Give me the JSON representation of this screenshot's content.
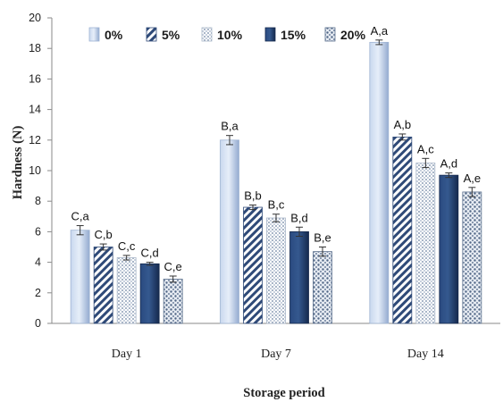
{
  "chart_data": {
    "type": "bar",
    "categories": [
      "Day 1",
      "Day 7",
      "Day 14"
    ],
    "series": [
      {
        "name": "0%",
        "values": [
          6.1,
          12.0,
          18.4
        ],
        "errors": [
          0.3,
          0.3,
          0.15
        ],
        "labels": [
          "C,a",
          "B,a",
          "A,a"
        ]
      },
      {
        "name": "5%",
        "values": [
          5.0,
          7.6,
          12.2
        ],
        "errors": [
          0.2,
          0.15,
          0.2
        ],
        "labels": [
          "C,b",
          "B,b",
          "A,b"
        ]
      },
      {
        "name": "10%",
        "values": [
          4.3,
          6.9,
          10.5
        ],
        "errors": [
          0.15,
          0.25,
          0.3
        ],
        "labels": [
          "C,c",
          "B,c",
          "A,c"
        ]
      },
      {
        "name": "15%",
        "values": [
          3.9,
          6.0,
          9.7
        ],
        "errors": [
          0.1,
          0.3,
          0.15
        ],
        "labels": [
          "C,d",
          "B,d",
          "A,d"
        ]
      },
      {
        "name": "20%",
        "values": [
          2.9,
          4.7,
          8.6
        ],
        "errors": [
          0.2,
          0.3,
          0.3
        ],
        "labels": [
          "C,e",
          "B,e",
          "A,e"
        ]
      }
    ],
    "xlabel": "Storage period",
    "ylabel": "Hardness (N)",
    "ylim": [
      0,
      20
    ],
    "yticks": [
      "0",
      "2",
      "4",
      "6",
      "8",
      "10",
      "12",
      "14",
      "16",
      "18",
      "20"
    ],
    "grid": false,
    "legend_position": "top",
    "series_styles": [
      "light-blue-solid",
      "diagonal-stripes",
      "light-dots",
      "navy-solid",
      "dense-dots"
    ],
    "colors": {
      "light_blue": "#aec4e4",
      "navy": "#1f3a68",
      "stripe": "#2f4a78",
      "dot": "#5a6f8c"
    }
  }
}
